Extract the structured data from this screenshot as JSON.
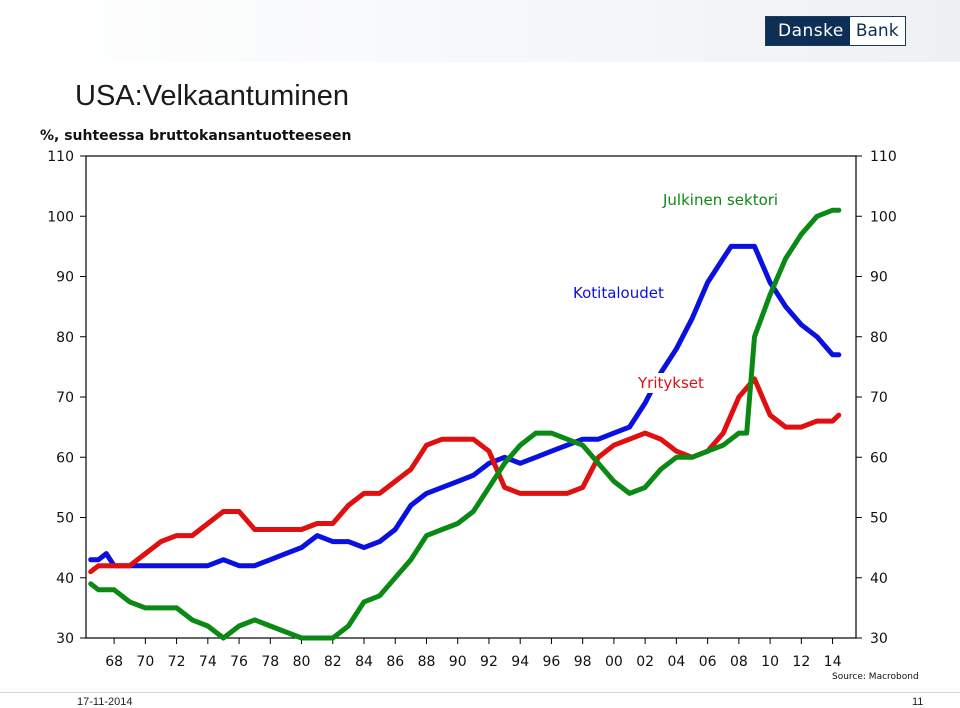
{
  "brand": {
    "left": "Danske",
    "right": "Bank",
    "colors": {
      "dark": "#0d2f55",
      "topbar": "#eef1f4"
    }
  },
  "title": "USA:Velkaantuminen",
  "subtitle": "%, suhteessa bruttokansantuotteeseen",
  "source": "Source: Macrobond",
  "footer": {
    "date": "17-11-2014",
    "page": "11"
  },
  "chart_data": {
    "type": "line",
    "ylim": [
      30,
      110
    ],
    "xlim": [
      1966.2,
      2015.5
    ],
    "yticks": [
      30,
      40,
      50,
      60,
      70,
      80,
      90,
      100,
      110
    ],
    "xticks": [
      1968,
      1970,
      1972,
      1974,
      1976,
      1978,
      1980,
      1982,
      1984,
      1986,
      1988,
      1990,
      1992,
      1994,
      1996,
      1998,
      2000,
      2002,
      2004,
      2006,
      2008,
      2010,
      2012,
      2014
    ],
    "xtick_labels": [
      "68",
      "70",
      "72",
      "74",
      "76",
      "78",
      "80",
      "82",
      "84",
      "86",
      "88",
      "90",
      "92",
      "94",
      "96",
      "98",
      "00",
      "02",
      "04",
      "06",
      "08",
      "10",
      "12",
      "14"
    ],
    "grid": false,
    "series": [
      {
        "name": "Kotitaloudet",
        "color": "#0a10e0",
        "x": [
          1966.5,
          1967,
          1967.5,
          1968,
          1968.5,
          1969,
          1970,
          1971,
          1972,
          1973,
          1974,
          1975,
          1976,
          1977,
          1978,
          1979,
          1980,
          1981,
          1982,
          1983,
          1984,
          1985,
          1986,
          1987,
          1988,
          1989,
          1990,
          1991,
          1992,
          1993,
          1994,
          1995,
          1996,
          1997,
          1998,
          1999,
          2000,
          2001,
          2002,
          2003,
          2004,
          2005,
          2006,
          2007,
          2007.5,
          2008,
          2009,
          2010,
          2011,
          2012,
          2013,
          2014,
          2014.4
        ],
        "y": [
          43,
          43,
          44,
          42,
          42,
          42,
          42,
          42,
          42,
          42,
          42,
          43,
          42,
          42,
          43,
          44,
          45,
          47,
          46,
          46,
          45,
          46,
          48,
          52,
          54,
          55,
          56,
          57,
          59,
          60,
          59,
          60,
          61,
          62,
          63,
          63,
          64,
          65,
          69,
          74,
          78,
          83,
          89,
          93,
          95,
          95,
          95,
          89,
          85,
          82,
          80,
          77,
          77
        ]
      },
      {
        "name": "Yritykset",
        "color": "#e01010",
        "x": [
          1966.5,
          1967,
          1968,
          1969,
          1970,
          1971,
          1972,
          1973,
          1974,
          1975,
          1976,
          1977,
          1978,
          1979,
          1980,
          1981,
          1982,
          1983,
          1984,
          1985,
          1986,
          1987,
          1988,
          1989,
          1990,
          1991,
          1992,
          1993,
          1994,
          1995,
          1996,
          1997,
          1998,
          1999,
          2000,
          2001,
          2002,
          2003,
          2004,
          2005,
          2006,
          2007,
          2008,
          2009,
          2010,
          2011,
          2012,
          2013,
          2014,
          2014.4
        ],
        "y": [
          41,
          42,
          42,
          42,
          44,
          46,
          47,
          47,
          49,
          51,
          51,
          48,
          48,
          48,
          48,
          49,
          49,
          52,
          54,
          54,
          56,
          58,
          62,
          63,
          63,
          63,
          61,
          55,
          54,
          54,
          54,
          54,
          55,
          60,
          62,
          63,
          64,
          63,
          61,
          60,
          61,
          64,
          70,
          73,
          67,
          65,
          65,
          66,
          66,
          67
        ]
      },
      {
        "name": "Julkinen sektori",
        "color": "#0a8a14",
        "x": [
          1966.5,
          1967,
          1968,
          1969,
          1970,
          1971,
          1972,
          1973,
          1974,
          1975,
          1976,
          1977,
          1978,
          1979,
          1980,
          1981,
          1982,
          1983,
          1984,
          1985,
          1986,
          1987,
          1988,
          1989,
          1990,
          1991,
          1992,
          1993,
          1994,
          1995,
          1996,
          1997,
          1998,
          1999,
          2000,
          2001,
          2002,
          2003,
          2004,
          2005,
          2006,
          2007,
          2008,
          2008.5,
          2009,
          2010,
          2011,
          2012,
          2013,
          2014,
          2014.4
        ],
        "y": [
          39,
          38,
          38,
          36,
          35,
          35,
          35,
          33,
          32,
          30,
          32,
          33,
          32,
          31,
          30,
          30,
          30,
          32,
          36,
          37,
          40,
          43,
          47,
          48,
          49,
          51,
          55,
          59,
          62,
          64,
          64,
          63,
          62,
          59,
          56,
          54,
          55,
          58,
          60,
          60,
          61,
          62,
          64,
          64,
          80,
          87,
          93,
          97,
          100,
          101,
          101
        ]
      }
    ],
    "annotations": [
      {
        "text": "Julkinen sektori",
        "series": "Julkinen sektori"
      },
      {
        "text": "Kotitaloudet",
        "series": "Kotitaloudet"
      },
      {
        "text": "Yritykset",
        "series": "Yritykset"
      }
    ]
  }
}
